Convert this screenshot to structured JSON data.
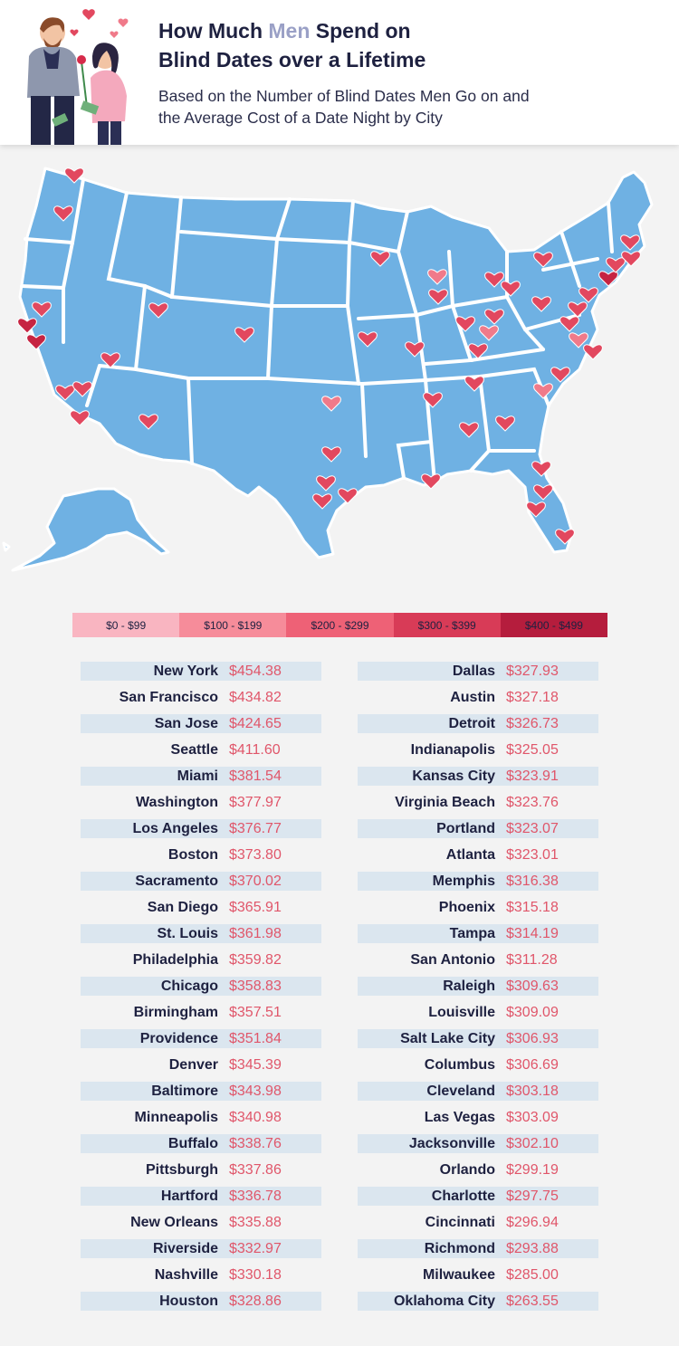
{
  "title": {
    "part1": "How Much ",
    "highlight": "Men",
    "part2": " Spend on",
    "line2": "Blind Dates over a Lifetime"
  },
  "subtitle": {
    "line1": "Based on the Number of Blind Dates Men Go on and",
    "line2": "the Average Cost of a Date Night by City"
  },
  "colors": {
    "map_fill": "#6fb1e3",
    "border": "#ffffff",
    "heart_light": "#f07a8a",
    "heart_mid": "#e2485f",
    "heart_dark": "#c62442",
    "row_shade": "#dbe6ef",
    "price_text": "#e0566a",
    "title_text": "#1e2140",
    "title_highlight": "#9aa0c6"
  },
  "legend": [
    {
      "label": "$0 - $99",
      "color": "#f9b5c1"
    },
    {
      "label": "$100 - $199",
      "color": "#f68c9a"
    },
    {
      "label": "$200 - $299",
      "color": "#ee6176"
    },
    {
      "label": "$300 - $399",
      "color": "#d83b57"
    },
    {
      "label": "$400 - $499",
      "color": "#b51d3d"
    }
  ],
  "left_column": [
    {
      "city": "New York",
      "price": "$454.38"
    },
    {
      "city": "San Francisco",
      "price": "$434.82"
    },
    {
      "city": "San Jose",
      "price": "$424.65"
    },
    {
      "city": "Seattle",
      "price": "$411.60"
    },
    {
      "city": "Miami",
      "price": "$381.54"
    },
    {
      "city": "Washington",
      "price": "$377.97"
    },
    {
      "city": "Los Angeles",
      "price": "$376.77"
    },
    {
      "city": "Boston",
      "price": "$373.80"
    },
    {
      "city": "Sacramento",
      "price": "$370.02"
    },
    {
      "city": "San Diego",
      "price": "$365.91"
    },
    {
      "city": "St. Louis",
      "price": "$361.98"
    },
    {
      "city": "Philadelphia",
      "price": "$359.82"
    },
    {
      "city": "Chicago",
      "price": "$358.83"
    },
    {
      "city": "Birmingham",
      "price": "$357.51"
    },
    {
      "city": "Providence",
      "price": "$351.84"
    },
    {
      "city": "Denver",
      "price": "$345.39"
    },
    {
      "city": "Baltimore",
      "price": "$343.98"
    },
    {
      "city": "Minneapolis",
      "price": "$340.98"
    },
    {
      "city": "Buffalo",
      "price": "$338.76"
    },
    {
      "city": "Pittsburgh",
      "price": "$337.86"
    },
    {
      "city": "Hartford",
      "price": "$336.78"
    },
    {
      "city": "New Orleans",
      "price": "$335.88"
    },
    {
      "city": "Riverside",
      "price": "$332.97"
    },
    {
      "city": "Nashville",
      "price": "$330.18"
    },
    {
      "city": "Houston",
      "price": "$328.86"
    }
  ],
  "right_column": [
    {
      "city": "Dallas",
      "price": "$327.93"
    },
    {
      "city": "Austin",
      "price": "$327.18"
    },
    {
      "city": "Detroit",
      "price": "$326.73"
    },
    {
      "city": "Indianapolis",
      "price": "$325.05"
    },
    {
      "city": "Kansas City",
      "price": "$323.91"
    },
    {
      "city": "Virginia Beach",
      "price": "$323.76"
    },
    {
      "city": "Portland",
      "price": "$323.07"
    },
    {
      "city": "Atlanta",
      "price": "$323.01"
    },
    {
      "city": "Memphis",
      "price": "$316.38"
    },
    {
      "city": "Phoenix",
      "price": "$315.18"
    },
    {
      "city": "Tampa",
      "price": "$314.19"
    },
    {
      "city": "San Antonio",
      "price": "$311.28"
    },
    {
      "city": "Raleigh",
      "price": "$309.63"
    },
    {
      "city": "Louisville",
      "price": "$309.09"
    },
    {
      "city": "Salt Lake City",
      "price": "$306.93"
    },
    {
      "city": "Columbus",
      "price": "$306.69"
    },
    {
      "city": "Cleveland",
      "price": "$303.18"
    },
    {
      "city": "Las Vegas",
      "price": "$303.09"
    },
    {
      "city": "Jacksonville",
      "price": "$302.10"
    },
    {
      "city": "Orlando",
      "price": "$299.19"
    },
    {
      "city": "Charlotte",
      "price": "$297.75"
    },
    {
      "city": "Cincinnati",
      "price": "$296.94"
    },
    {
      "city": "Richmond",
      "price": "$293.88"
    },
    {
      "city": "Milwaukee",
      "price": "$285.00"
    },
    {
      "city": "Oklahoma City",
      "price": "$263.55"
    }
  ],
  "map_markers": [
    {
      "city": "Seattle",
      "tone": "mid"
    },
    {
      "city": "Portland",
      "tone": "mid"
    },
    {
      "city": "Sacramento",
      "tone": "mid"
    },
    {
      "city": "San Francisco",
      "tone": "dark"
    },
    {
      "city": "San Jose",
      "tone": "dark"
    },
    {
      "city": "Las Vegas",
      "tone": "mid"
    },
    {
      "city": "Los Angeles",
      "tone": "mid"
    },
    {
      "city": "Riverside",
      "tone": "mid"
    },
    {
      "city": "San Diego",
      "tone": "mid"
    },
    {
      "city": "Phoenix",
      "tone": "mid"
    },
    {
      "city": "Salt Lake City",
      "tone": "mid"
    },
    {
      "city": "Denver",
      "tone": "mid"
    },
    {
      "city": "Oklahoma City",
      "tone": "light"
    },
    {
      "city": "Dallas",
      "tone": "mid"
    },
    {
      "city": "Austin",
      "tone": "mid"
    },
    {
      "city": "San Antonio",
      "tone": "mid"
    },
    {
      "city": "Houston",
      "tone": "mid"
    },
    {
      "city": "Minneapolis",
      "tone": "mid"
    },
    {
      "city": "Kansas City",
      "tone": "mid"
    },
    {
      "city": "St. Louis",
      "tone": "mid"
    },
    {
      "city": "Milwaukee",
      "tone": "light"
    },
    {
      "city": "Chicago",
      "tone": "mid"
    },
    {
      "city": "Memphis",
      "tone": "mid"
    },
    {
      "city": "New Orleans",
      "tone": "mid"
    },
    {
      "city": "Indianapolis",
      "tone": "mid"
    },
    {
      "city": "Louisville",
      "tone": "mid"
    },
    {
      "city": "Nashville",
      "tone": "mid"
    },
    {
      "city": "Birmingham",
      "tone": "mid"
    },
    {
      "city": "Detroit",
      "tone": "mid"
    },
    {
      "city": "Cleveland",
      "tone": "mid"
    },
    {
      "city": "Columbus",
      "tone": "mid"
    },
    {
      "city": "Cincinnati",
      "tone": "light"
    },
    {
      "city": "Atlanta",
      "tone": "mid"
    },
    {
      "city": "Pittsburgh",
      "tone": "mid"
    },
    {
      "city": "Buffalo",
      "tone": "mid"
    },
    {
      "city": "Charlotte",
      "tone": "light"
    },
    {
      "city": "Raleigh",
      "tone": "mid"
    },
    {
      "city": "Richmond",
      "tone": "light"
    },
    {
      "city": "Virginia Beach",
      "tone": "mid"
    },
    {
      "city": "Washington",
      "tone": "mid"
    },
    {
      "city": "Baltimore",
      "tone": "mid"
    },
    {
      "city": "Philadelphia",
      "tone": "mid"
    },
    {
      "city": "New York",
      "tone": "dark"
    },
    {
      "city": "Hartford",
      "tone": "mid"
    },
    {
      "city": "Providence",
      "tone": "mid"
    },
    {
      "city": "Boston",
      "tone": "mid"
    },
    {
      "city": "Jacksonville",
      "tone": "mid"
    },
    {
      "city": "Orlando",
      "tone": "mid"
    },
    {
      "city": "Tampa",
      "tone": "mid"
    },
    {
      "city": "Miami",
      "tone": "mid"
    }
  ]
}
